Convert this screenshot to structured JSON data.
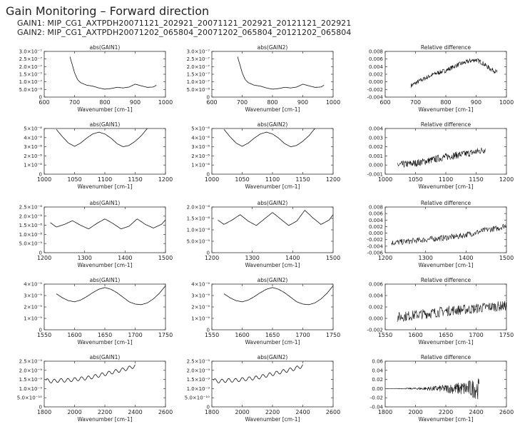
{
  "header": {
    "title": "Gain Monitoring – Forward direction",
    "gain1": "GAIN1: MIP_CG1_AXTPDH20071121_202921_20071121_202921_20121121_202921",
    "gain2": "GAIN2: MIP_CG1_AXTPDH20071202_065804_20071202_065804_20121202_065804"
  },
  "chart_data": [
    {
      "type": "line",
      "title": "abs(GAIN1)",
      "xlabel": "Wavenumber [cm-1]",
      "xlim": [
        600,
        1000
      ],
      "xticks": [
        "600",
        "700",
        "800",
        "900",
        "1000"
      ],
      "yticks": [
        "0",
        "5.0×10⁻⁸",
        "1.0×10⁻⁷",
        "1.5×10⁻⁷",
        "2.0×10⁻⁷",
        "2.5×10⁻⁷",
        "3.0×10⁻⁷"
      ],
      "ylim": [
        0,
        3e-07
      ],
      "x": [
        685,
        690,
        700,
        710,
        720,
        740,
        760,
        780,
        800,
        820,
        840,
        860,
        880,
        900,
        920,
        940,
        960,
        970
      ],
      "y": [
        2.65e-07,
        2.3e-07,
        1.6e-07,
        1.15e-07,
        9.5e-08,
        7.8e-08,
        7.2e-08,
        6e-08,
        5.2e-08,
        5.6e-08,
        6.4e-08,
        6e-08,
        6.6e-08,
        8.5e-08,
        7.4e-08,
        6.4e-08,
        6.6e-08,
        7.8e-08
      ]
    },
    {
      "type": "line",
      "title": "abs(GAIN2)",
      "xlabel": "Wavenumber [cm-1]",
      "xlim": [
        600,
        1000
      ],
      "xticks": [
        "600",
        "700",
        "800",
        "900",
        "1000"
      ],
      "yticks": [
        "0",
        "5.0×10⁻⁸",
        "1.0×10⁻⁷",
        "1.5×10⁻⁷",
        "2.0×10⁻⁷",
        "2.5×10⁻⁷",
        "3.0×10⁻⁷"
      ],
      "ylim": [
        0,
        3e-07
      ],
      "x": [
        685,
        690,
        700,
        710,
        720,
        740,
        760,
        780,
        800,
        820,
        840,
        860,
        880,
        900,
        920,
        940,
        960,
        970
      ],
      "y": [
        2.65e-07,
        2.3e-07,
        1.6e-07,
        1.15e-07,
        9.5e-08,
        7.8e-08,
        7.2e-08,
        6e-08,
        5.2e-08,
        5.6e-08,
        6.4e-08,
        6e-08,
        6.6e-08,
        8.5e-08,
        7.4e-08,
        6.4e-08,
        6.6e-08,
        7.8e-08
      ]
    },
    {
      "type": "line",
      "title": "Relative difference",
      "xlabel": "Wavenumber [cm-1]",
      "xlim": [
        600,
        1000
      ],
      "xticks": [
        "600",
        "700",
        "800",
        "900",
        "1000"
      ],
      "yticks": [
        "-0.004",
        "-0.002",
        "0.000",
        "0.002",
        "0.004",
        "0.006",
        "0.008"
      ],
      "ylim": [
        -0.004,
        0.008
      ],
      "noise": 0.0006,
      "x": [
        685,
        720,
        760,
        800,
        840,
        880,
        900,
        920,
        945,
        970
      ],
      "y": [
        -0.001,
        0.0005,
        0.002,
        0.003,
        0.0045,
        0.0055,
        0.0058,
        0.005,
        0.0035,
        0.0025
      ]
    },
    {
      "type": "line",
      "title": "abs(GAIN1)",
      "xlabel": "Wavenumber [cm-1]",
      "xlim": [
        1000,
        1200
      ],
      "xticks": [
        "1000",
        "1050",
        "1100",
        "1150",
        "1200"
      ],
      "yticks": [
        "0",
        "1×10⁻⁸",
        "2×10⁻⁸",
        "3×10⁻⁸",
        "4×10⁻⁸",
        "5×10⁻⁸"
      ],
      "ylim": [
        0,
        5e-08
      ],
      "x": [
        1020,
        1030,
        1040,
        1050,
        1060,
        1070,
        1080,
        1090,
        1100,
        1110,
        1120,
        1130,
        1140,
        1150,
        1160,
        1170
      ],
      "y": [
        4.9e-08,
        4.1e-08,
        3.4e-08,
        3.05e-08,
        3.4e-08,
        3.95e-08,
        4.4e-08,
        4.6e-08,
        4.4e-08,
        3.95e-08,
        3.35e-08,
        3e-08,
        3.15e-08,
        3.6e-08,
        4.2e-08,
        5e-08
      ]
    },
    {
      "type": "line",
      "title": "abs(GAIN2)",
      "xlabel": "Wavenumber [cm-1]",
      "xlim": [
        1000,
        1200
      ],
      "xticks": [
        "1000",
        "1050",
        "1100",
        "1150",
        "1200"
      ],
      "yticks": [
        "0",
        "1×10⁻⁸",
        "2×10⁻⁸",
        "3×10⁻⁸",
        "4×10⁻⁸",
        "5×10⁻⁸"
      ],
      "ylim": [
        0,
        5e-08
      ],
      "x": [
        1020,
        1030,
        1040,
        1050,
        1060,
        1070,
        1080,
        1090,
        1100,
        1110,
        1120,
        1130,
        1140,
        1150,
        1160,
        1170
      ],
      "y": [
        4.9e-08,
        4.1e-08,
        3.4e-08,
        3.05e-08,
        3.4e-08,
        3.95e-08,
        4.4e-08,
        4.6e-08,
        4.4e-08,
        3.95e-08,
        3.35e-08,
        3e-08,
        3.15e-08,
        3.6e-08,
        4.2e-08,
        5e-08
      ]
    },
    {
      "type": "line",
      "title": "Relative difference",
      "xlabel": "Wavenumber [cm-1]",
      "xlim": [
        1000,
        1200
      ],
      "xticks": [
        "1000",
        "1050",
        "1100",
        "1150",
        "1200"
      ],
      "yticks": [
        "-0.001",
        "0.000",
        "0.001",
        "0.002",
        "0.003",
        "0.004"
      ],
      "ylim": [
        -0.001,
        0.004
      ],
      "noise": 0.0004,
      "x": [
        1020,
        1050,
        1080,
        1100,
        1120,
        1140,
        1165
      ],
      "y": [
        0.0,
        0.0002,
        0.0006,
        0.0009,
        0.0011,
        0.0013,
        0.0017
      ]
    },
    {
      "type": "line",
      "title": "abs(GAIN1)",
      "xlabel": "Wavenumber [cm-1]",
      "xlim": [
        1200,
        1500
      ],
      "xticks": [
        "1200",
        "1300",
        "1400",
        "1500"
      ],
      "yticks": [
        "0",
        "5.0×10⁻⁹",
        "1.0×10⁻⁸",
        "1.5×10⁻⁸",
        "2.0×10⁻⁸",
        "2.5×10⁻⁸"
      ],
      "ylim": [
        0,
        2.5e-08
      ],
      "x": [
        1215,
        1230,
        1250,
        1270,
        1290,
        1310,
        1330,
        1350,
        1370,
        1390,
        1410,
        1430,
        1450,
        1470,
        1490,
        1500
      ],
      "y": [
        1.65e-08,
        1.4e-08,
        1.55e-08,
        1.75e-08,
        1.5e-08,
        1.3e-08,
        1.6e-08,
        1.85e-08,
        1.6e-08,
        1.3e-08,
        1.45e-08,
        1.85e-08,
        1.55e-08,
        1.35e-08,
        1.55e-08,
        1.8e-08
      ]
    },
    {
      "type": "line",
      "title": "abs(GAIN2)",
      "xlabel": "Wavenumber [cm-1]",
      "xlim": [
        1200,
        1500
      ],
      "xticks": [
        "1200",
        "1300",
        "1400",
        "1500"
      ],
      "yticks": [
        "0",
        "5.0×10⁻⁹",
        "1.0×10⁻⁸",
        "1.5×10⁻⁸",
        "2.0×10⁻⁸"
      ],
      "ylim": [
        0,
        2.1e-08
      ],
      "x": [
        1215,
        1230,
        1250,
        1270,
        1290,
        1310,
        1330,
        1350,
        1370,
        1390,
        1410,
        1430,
        1450,
        1470,
        1490,
        1500
      ],
      "y": [
        1.5e-08,
        1.3e-08,
        1.5e-08,
        1.75e-08,
        1.45e-08,
        1.25e-08,
        1.55e-08,
        1.85e-08,
        1.55e-08,
        1.25e-08,
        1.45e-08,
        1.95e-08,
        1.6e-08,
        1.3e-08,
        1.5e-08,
        1.75e-08
      ]
    },
    {
      "type": "line",
      "title": "Relative difference",
      "xlabel": "Wavenumber [cm-1]",
      "xlim": [
        1200,
        1500
      ],
      "xticks": [
        "1200",
        "1300",
        "1400",
        "1500"
      ],
      "yticks": [
        "-0.006",
        "-0.004",
        "-0.002",
        "0.000",
        "0.002",
        "0.004",
        "0.006",
        "0.008"
      ],
      "ylim": [
        -0.006,
        0.008
      ],
      "noise": 0.0009,
      "x": [
        1215,
        1260,
        1300,
        1340,
        1380,
        1420,
        1450,
        1480,
        1500
      ],
      "y": [
        -0.003,
        -0.0025,
        -0.002,
        -0.0015,
        -0.001,
        0.0,
        0.001,
        0.0015,
        0.0025
      ]
    },
    {
      "type": "line",
      "title": "abs(GAIN1)",
      "xlabel": "Wavenumber [cm-1]",
      "xlim": [
        1550,
        1750
      ],
      "xticks": [
        "1550",
        "1600",
        "1650",
        "1700",
        "1750"
      ],
      "yticks": [
        "0",
        "1×10⁻⁹",
        "2×10⁻⁹",
        "3×10⁻⁹",
        "4×10⁻⁹"
      ],
      "ylim": [
        0,
        4e-09
      ],
      "x": [
        1570,
        1580,
        1590,
        1600,
        1610,
        1620,
        1630,
        1640,
        1650,
        1660,
        1670,
        1680,
        1690,
        1700,
        1710,
        1720,
        1730,
        1740,
        1750
      ],
      "y": [
        3.15e-09,
        2.8e-09,
        2.55e-09,
        2.45e-09,
        2.6e-09,
        2.9e-09,
        3.25e-09,
        3.55e-09,
        3.7e-09,
        3.55e-09,
        3.25e-09,
        2.85e-09,
        2.45e-09,
        2.25e-09,
        2.2e-09,
        2.35e-09,
        2.7e-09,
        3.2e-09,
        3.85e-09
      ]
    },
    {
      "type": "line",
      "title": "abs(GAIN2)",
      "xlabel": "Wavenumber [cm-1]",
      "xlim": [
        1550,
        1750
      ],
      "xticks": [
        "1550",
        "1600",
        "1650",
        "1700",
        "1750"
      ],
      "yticks": [
        "0",
        "1×10⁻⁹",
        "2×10⁻⁹",
        "3×10⁻⁹",
        "4×10⁻⁹"
      ],
      "ylim": [
        0,
        4e-09
      ],
      "x": [
        1570,
        1580,
        1590,
        1600,
        1610,
        1620,
        1630,
        1640,
        1650,
        1660,
        1670,
        1680,
        1690,
        1700,
        1710,
        1720,
        1730,
        1740,
        1750
      ],
      "y": [
        3.15e-09,
        2.8e-09,
        2.55e-09,
        2.45e-09,
        2.6e-09,
        2.9e-09,
        3.25e-09,
        3.55e-09,
        3.7e-09,
        3.55e-09,
        3.25e-09,
        2.85e-09,
        2.45e-09,
        2.25e-09,
        2.2e-09,
        2.35e-09,
        2.7e-09,
        3.2e-09,
        3.85e-09
      ]
    },
    {
      "type": "line",
      "title": "Relative difference",
      "xlabel": "Wavenumber [cm-1]",
      "xlim": [
        1550,
        1750
      ],
      "xticks": [
        "1550",
        "1600",
        "1650",
        "1700",
        "1750"
      ],
      "yticks": [
        "-0.002",
        "0.000",
        "0.002",
        "0.004",
        "0.006"
      ],
      "ylim": [
        -0.002,
        0.006
      ],
      "noise": 0.0009,
      "x": [
        1570,
        1600,
        1630,
        1660,
        1690,
        1720,
        1750
      ],
      "y": [
        0.0002,
        0.0006,
        0.001,
        0.0014,
        0.0016,
        0.002,
        0.0022
      ]
    },
    {
      "type": "line",
      "title": "abs(GAIN1)",
      "xlabel": "Wavenumber [cm-1]",
      "xlim": [
        1800,
        2600
      ],
      "xticks": [
        "1800",
        "2000",
        "2200",
        "2400",
        "2600"
      ],
      "yticks": [
        "0",
        "5.0×10⁻¹⁰",
        "1.0×10⁻⁹",
        "1.5×10⁻⁹",
        "2.0×10⁻⁹",
        "2.5×10⁻⁹"
      ],
      "ylim": [
        0,
        2.5e-09
      ],
      "x": [
        1810,
        1850,
        1900,
        1950,
        2000,
        2050,
        2100,
        2150,
        2200,
        2250,
        2300,
        2350,
        2400
      ],
      "y": [
        1.45e-09,
        1.4e-09,
        1.45e-09,
        1.45e-09,
        1.5e-09,
        1.55e-09,
        1.6e-09,
        1.7e-09,
        1.8e-09,
        1.9e-09,
        2e-09,
        2.1e-09,
        2.25e-09
      ],
      "wiggle": 1e-10
    },
    {
      "type": "line",
      "title": "abs(GAIN2)",
      "xlabel": "Wavenumber [cm-1]",
      "xlim": [
        1800,
        2600
      ],
      "xticks": [
        "1800",
        "2000",
        "2200",
        "2400",
        "2600"
      ],
      "yticks": [
        "0",
        "5.0×10⁻¹⁰",
        "1.0×10⁻⁹",
        "1.5×10⁻⁹",
        "2.0×10⁻⁹",
        "2.5×10⁻⁹"
      ],
      "ylim": [
        0,
        2.5e-09
      ],
      "x": [
        1810,
        1850,
        1900,
        1950,
        2000,
        2050,
        2100,
        2150,
        2200,
        2250,
        2300,
        2350,
        2400
      ],
      "y": [
        1.45e-09,
        1.4e-09,
        1.45e-09,
        1.45e-09,
        1.5e-09,
        1.55e-09,
        1.6e-09,
        1.7e-09,
        1.8e-09,
        1.9e-09,
        2e-09,
        2.1e-09,
        2.25e-09
      ],
      "wiggle": 1e-10
    },
    {
      "type": "line",
      "title": "Relative difference",
      "xlabel": "Wavenumber [cm-1]",
      "xlim": [
        1800,
        2600
      ],
      "xticks": [
        "1800",
        "2000",
        "2200",
        "2400",
        "2600"
      ],
      "yticks": [
        "-0.04",
        "-0.02",
        "0.00",
        "0.02",
        "0.04",
        "0.06"
      ],
      "ylim": [
        -0.04,
        0.06
      ],
      "noise": 0.004,
      "growing": true,
      "x": [
        1810,
        2000,
        2200,
        2350,
        2400,
        2420
      ],
      "y": [
        0.0,
        0.0,
        0.0,
        0.0,
        0.0,
        0.0
      ]
    }
  ]
}
